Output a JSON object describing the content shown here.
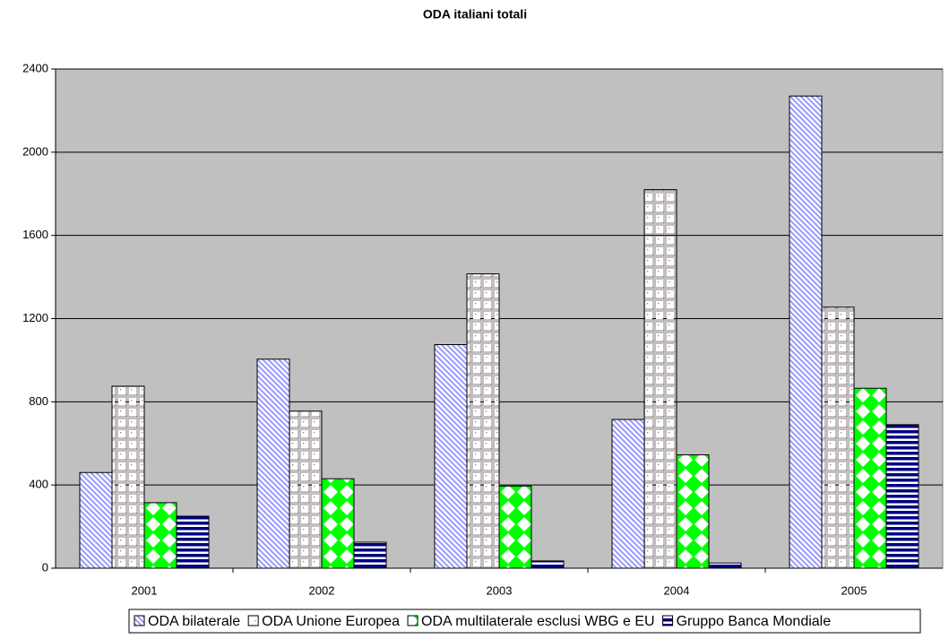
{
  "chart_data": {
    "type": "bar",
    "title": "ODA italiani totali",
    "categories": [
      "2001",
      "2002",
      "2003",
      "2004",
      "2005"
    ],
    "series": [
      {
        "name": "ODA bilaterale",
        "color": "#9999ff",
        "values": [
          460,
          1005,
          1075,
          715,
          2270
        ]
      },
      {
        "name": "ODA Unione Europea",
        "color": "#cc6666",
        "values": [
          875,
          755,
          1415,
          1820,
          1255
        ]
      },
      {
        "name": "ODA multilaterale esclusi WBG e EU",
        "color": "#00ff00",
        "values": [
          315,
          430,
          395,
          545,
          865
        ]
      },
      {
        "name": "Gruppo Banca Mondiale",
        "color": "#000080",
        "values": [
          250,
          125,
          35,
          25,
          690
        ]
      }
    ],
    "ylim": [
      0,
      2400
    ],
    "yticks": [
      0,
      400,
      800,
      1200,
      1600,
      2000,
      2400
    ],
    "grid": true,
    "legend": "bottom"
  }
}
